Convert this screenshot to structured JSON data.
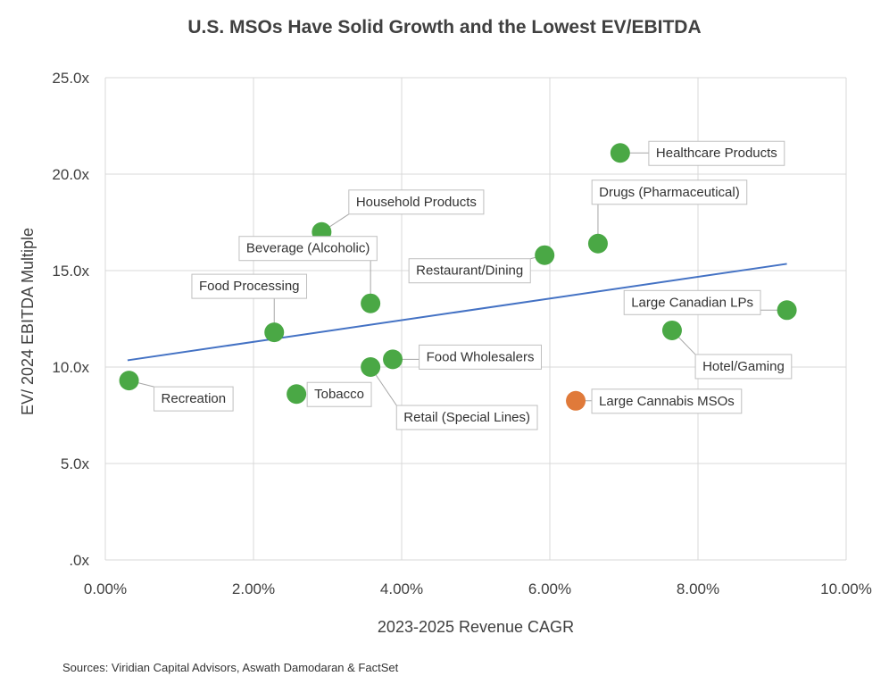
{
  "chart_data": {
    "type": "scatter",
    "title": "U.S. MSOs Have Solid Growth and the Lowest EV/EBITDA",
    "xlabel": "2023-2025 Revenue CAGR",
    "ylabel": "EV/ 2024 EBITDA Multiple",
    "xlim": [
      0,
      10
    ],
    "ylim": [
      0,
      25
    ],
    "x_ticks": [
      "0.00%",
      "2.00%",
      "4.00%",
      "6.00%",
      "8.00%",
      "10.00%"
    ],
    "y_ticks": [
      ".0x",
      "5.0x",
      "10.0x",
      "15.0x",
      "20.0x",
      "25.0x"
    ],
    "grid": true,
    "trendline": {
      "x": [
        0.3,
        9.2
      ],
      "y": [
        10.35,
        15.35
      ],
      "color": "#4472c4"
    },
    "points": [
      {
        "label": "Recreation",
        "x": 0.32,
        "y": 9.3,
        "color": "#4aa845"
      },
      {
        "label": "Food Processing",
        "x": 2.28,
        "y": 11.8,
        "color": "#4aa845"
      },
      {
        "label": "Tobacco",
        "x": 2.58,
        "y": 8.6,
        "color": "#4aa845"
      },
      {
        "label": "Household Products",
        "x": 2.92,
        "y": 17.0,
        "color": "#4aa845"
      },
      {
        "label": "Beverage (Alcoholic)",
        "x": 3.58,
        "y": 13.3,
        "color": "#4aa845"
      },
      {
        "label": "Retail (Special Lines)",
        "x": 3.58,
        "y": 10.0,
        "color": "#4aa845"
      },
      {
        "label": "Food Wholesalers",
        "x": 3.88,
        "y": 10.4,
        "color": "#4aa845"
      },
      {
        "label": "Restaurant/Dining",
        "x": 5.93,
        "y": 15.8,
        "color": "#4aa845"
      },
      {
        "label": "Large Cannabis MSOs",
        "x": 6.35,
        "y": 8.25,
        "color": "#e07a3a"
      },
      {
        "label": "Drugs (Pharmaceutical)",
        "x": 6.65,
        "y": 16.4,
        "color": "#4aa845"
      },
      {
        "label": "Healthcare Products",
        "x": 6.95,
        "y": 21.1,
        "color": "#4aa845"
      },
      {
        "label": "Hotel/Gaming",
        "x": 7.65,
        "y": 11.9,
        "color": "#4aa845"
      },
      {
        "label": "Large Canadian LPs",
        "x": 9.2,
        "y": 12.95,
        "color": "#4aa845"
      }
    ]
  },
  "source": "Sources:  Viridian Capital Advisors, Aswath Damodaran & FactSet"
}
